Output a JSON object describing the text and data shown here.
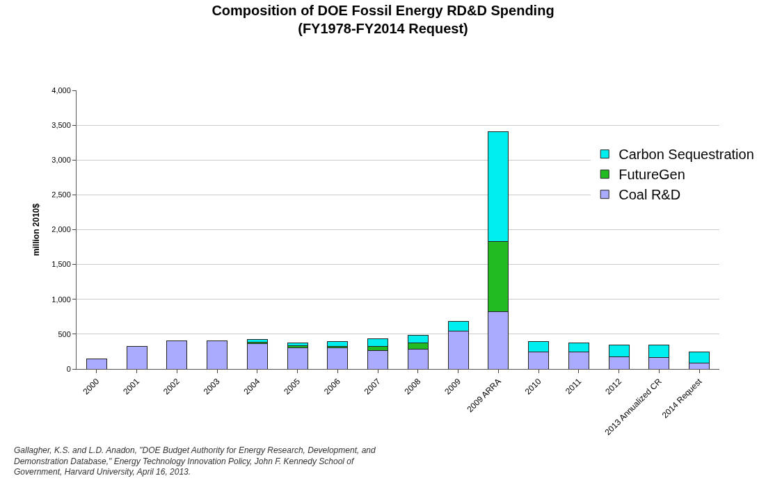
{
  "chart_data": {
    "type": "bar",
    "title": "Composition of DOE Fossil Energy RD&D Spending\n(FY1978-FY2014 Request)",
    "ylabel": "million 2010$",
    "categories": [
      "2000",
      "2001",
      "2002",
      "2003",
      "2004",
      "2005",
      "2006",
      "2007",
      "2008",
      "2009",
      "2009 ARRA",
      "2010",
      "2011",
      "2012",
      "2013 Annualized CR",
      "2014 Request"
    ],
    "stacked": true,
    "series": [
      {
        "name": "Coal R&D",
        "color": "#aaaaff",
        "values": [
          145,
          327,
          403,
          403,
          360,
          300,
          300,
          265,
          280,
          540,
          820,
          240,
          240,
          170,
          165,
          80
        ]
      },
      {
        "name": "FutureGen",
        "color": "#22bb22",
        "values": [
          null,
          null,
          null,
          null,
          25,
          35,
          20,
          60,
          90,
          null,
          1010,
          null,
          null,
          null,
          null,
          null
        ]
      },
      {
        "name": "Carbon Sequestration",
        "color": "#00eeee",
        "values": [
          null,
          null,
          null,
          null,
          35,
          40,
          75,
          105,
          115,
          145,
          1580,
          150,
          135,
          175,
          180,
          165
        ]
      }
    ],
    "ylim": [
      0,
      4000
    ],
    "yticks": [
      {
        "value": 0,
        "label": "0"
      },
      {
        "value": 500,
        "label": "500"
      },
      {
        "value": 1000,
        "label": "1,000"
      },
      {
        "value": 1500,
        "label": "1,500"
      },
      {
        "value": 2000,
        "label": "2,000"
      },
      {
        "value": 2500,
        "label": "2,500"
      },
      {
        "value": 3000,
        "label": "3,000"
      },
      {
        "value": 3500,
        "label": "3,500"
      },
      {
        "value": 4000,
        "label": "4,000"
      }
    ],
    "grid": "y",
    "legend": "right",
    "annotations": [
      "Gallagher, K.S. and L.D. Anadon, \"DOE Budget Authority for Energy Research, Development, and\nDemonstration Database,\" Energy Technology Innovation Policy, John F. Kennedy School of\nGovernment, Harvard University, April 16, 2013."
    ]
  }
}
